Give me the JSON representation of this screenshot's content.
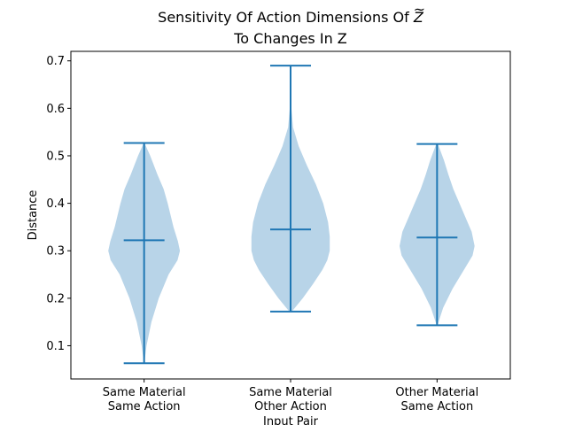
{
  "chart_data": {
    "type": "violin",
    "title_line1_prefix": "Sensitivity Of Action Dimensions Of ",
    "title_symbol": "Z",
    "title_line2": "To Changes In Z",
    "xlabel": "Input Pair",
    "ylabel": "Distance",
    "ylim": [
      0.03,
      0.72
    ],
    "yticks": [
      "0.1",
      "0.2",
      "0.3",
      "0.4",
      "0.5",
      "0.6",
      "0.7"
    ],
    "categories": [
      [
        "Same Material",
        "Same Action"
      ],
      [
        "Same Material",
        "Other Action"
      ],
      [
        "Other Material",
        "Same Action"
      ]
    ],
    "series": [
      {
        "min": 0.063,
        "median": 0.322,
        "max": 0.527,
        "density": [
          [
            0.063,
            0.004
          ],
          [
            0.1,
            0.06
          ],
          [
            0.15,
            0.18
          ],
          [
            0.2,
            0.36
          ],
          [
            0.25,
            0.6
          ],
          [
            0.28,
            0.82
          ],
          [
            0.3,
            0.88
          ],
          [
            0.32,
            0.83
          ],
          [
            0.35,
            0.72
          ],
          [
            0.4,
            0.58
          ],
          [
            0.43,
            0.48
          ],
          [
            0.46,
            0.33
          ],
          [
            0.5,
            0.15
          ],
          [
            0.527,
            0.01
          ]
        ]
      },
      {
        "min": 0.172,
        "median": 0.345,
        "max": 0.69,
        "density": [
          [
            0.172,
            0.03
          ],
          [
            0.2,
            0.3
          ],
          [
            0.23,
            0.55
          ],
          [
            0.26,
            0.78
          ],
          [
            0.28,
            0.9
          ],
          [
            0.3,
            0.96
          ],
          [
            0.33,
            0.96
          ],
          [
            0.36,
            0.92
          ],
          [
            0.4,
            0.8
          ],
          [
            0.44,
            0.62
          ],
          [
            0.48,
            0.4
          ],
          [
            0.52,
            0.2
          ],
          [
            0.56,
            0.06
          ],
          [
            0.6,
            0.02
          ],
          [
            0.65,
            0.005
          ],
          [
            0.69,
            0.002
          ]
        ]
      },
      {
        "min": 0.143,
        "median": 0.328,
        "max": 0.525,
        "density": [
          [
            0.143,
            0.01
          ],
          [
            0.18,
            0.15
          ],
          [
            0.22,
            0.38
          ],
          [
            0.26,
            0.66
          ],
          [
            0.29,
            0.87
          ],
          [
            0.31,
            0.92
          ],
          [
            0.34,
            0.85
          ],
          [
            0.37,
            0.7
          ],
          [
            0.4,
            0.55
          ],
          [
            0.43,
            0.4
          ],
          [
            0.46,
            0.28
          ],
          [
            0.49,
            0.17
          ],
          [
            0.525,
            0.02
          ]
        ]
      }
    ],
    "fill_color": "#b8d4e8",
    "line_color": "#1f77b4"
  }
}
